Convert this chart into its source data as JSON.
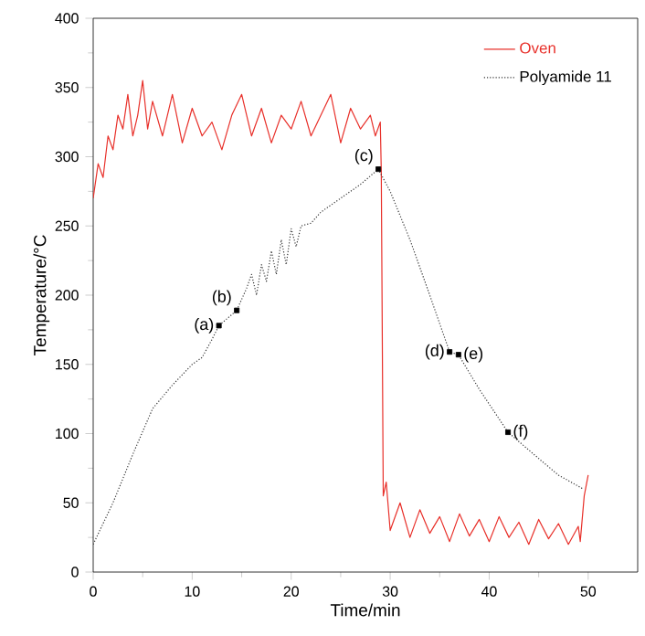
{
  "chart_data": {
    "type": "line",
    "xlabel": "Time/min",
    "ylabel": "Temperature/°C",
    "xlim": [
      0,
      55
    ],
    "xticks": [
      0,
      10,
      20,
      30,
      40,
      50
    ],
    "ylim": [
      0,
      400
    ],
    "yticks": [
      0,
      50,
      100,
      150,
      200,
      250,
      300,
      350,
      400
    ],
    "legend": "top right",
    "grid": false,
    "series": [
      {
        "name": "Oven",
        "color": "#e8302a",
        "line_style": "solid",
        "marker": "none",
        "x": [
          0,
          0.5,
          1,
          1.5,
          2,
          2.5,
          3,
          3.5,
          4,
          4.5,
          5,
          5.5,
          6,
          7,
          8,
          9,
          10,
          11,
          12,
          13,
          14,
          15,
          16,
          17,
          18,
          19,
          20,
          21,
          22,
          23,
          24,
          25,
          26,
          27,
          28,
          28.5,
          29,
          29.1,
          29.3,
          29.6,
          30,
          31,
          32,
          33,
          34,
          35,
          36,
          37,
          38,
          39,
          40,
          41,
          42,
          43,
          44,
          45,
          46,
          47,
          48,
          49,
          49.2,
          49.6,
          50
        ],
        "values": [
          270,
          295,
          285,
          315,
          305,
          330,
          320,
          345,
          315,
          330,
          355,
          320,
          340,
          315,
          345,
          310,
          335,
          315,
          325,
          305,
          330,
          345,
          315,
          335,
          310,
          330,
          320,
          340,
          315,
          330,
          345,
          310,
          335,
          320,
          330,
          315,
          325,
          290,
          55,
          65,
          30,
          50,
          25,
          45,
          28,
          40,
          22,
          42,
          26,
          38,
          22,
          40,
          25,
          36,
          20,
          38,
          24,
          35,
          20,
          33,
          22,
          55,
          70
        ]
      },
      {
        "name": "Polyamide 11",
        "color": "#333333",
        "line_style": "dotted",
        "marker": "none",
        "x": [
          0,
          2,
          4,
          6,
          8,
          10,
          11,
          12,
          12.7,
          14.5,
          15.5,
          16,
          16.5,
          17,
          17.5,
          18,
          18.5,
          19,
          19.5,
          20,
          20.5,
          21,
          22,
          23,
          25,
          27,
          28.8,
          30,
          32,
          34,
          36,
          36.9,
          39,
          41.9,
          45,
          47,
          49.5
        ],
        "values": [
          20,
          50,
          85,
          118,
          135,
          150,
          155,
          168,
          178,
          189,
          205,
          215,
          200,
          222,
          210,
          232,
          215,
          240,
          222,
          248,
          235,
          250,
          252,
          260,
          270,
          280,
          291,
          275,
          240,
          200,
          159,
          157,
          132,
          101,
          82,
          70,
          60
        ]
      },
      {
        "type": "scatter",
        "color": "#000000",
        "marker": "square",
        "x": [
          12.7,
          14.5,
          28.8,
          36.0,
          36.9,
          41.9
        ],
        "values": [
          178,
          189,
          291,
          159,
          157,
          101
        ]
      }
    ],
    "annotations": [
      {
        "text": "(a)",
        "x": 12.7,
        "y": 178
      },
      {
        "text": "(b)",
        "x": 14.5,
        "y": 189
      },
      {
        "text": "(c)",
        "x": 28.8,
        "y": 291
      },
      {
        "text": "(d)",
        "x": 36.0,
        "y": 159
      },
      {
        "text": "(e)",
        "x": 36.9,
        "y": 157
      },
      {
        "text": "(f)",
        "x": 41.9,
        "y": 101
      }
    ]
  }
}
